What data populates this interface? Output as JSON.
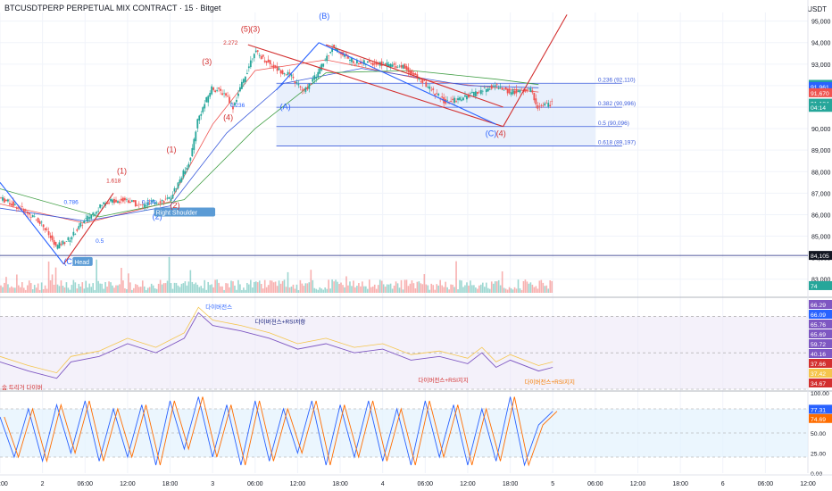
{
  "header": {
    "title": "BTCUSDTPERP PERPETUAL MIX CONTRACT · 15 · Bitget",
    "currency": "USDT"
  },
  "colors": {
    "up": "#26a69a",
    "down": "#ef5350",
    "grid": "#f0f3fa",
    "axis": "#131722",
    "fib_fill": "#e3ecfb",
    "fib_line": "#3b5bdb",
    "wave_red": "#d32f2f",
    "wave_blue": "#2962ff",
    "rsi_line": "#7e57c2",
    "rsi_ma": "#f5c54c",
    "stoch_k": "#2962ff",
    "stoch_d": "#ff6d00"
  },
  "chart_data": {
    "type": "candlestick",
    "price_axis": {
      "ticks": [
        "95,000",
        "94,000",
        "93,000",
        "92,000",
        "91,000",
        "90,000",
        "89,000",
        "88,000",
        "87,000",
        "86,000",
        "85,000",
        "84,000",
        "83,000"
      ],
      "range": [
        82200,
        95400
      ]
    },
    "price_tags": [
      {
        "label": "92,058",
        "value": 92058,
        "color": "#26a69a"
      },
      {
        "label": "91,961",
        "value": 91961,
        "color": "#2962ff"
      },
      {
        "label": "91,670",
        "value": 91670,
        "color": "#ef5350"
      },
      {
        "label": "91,184",
        "value": 91184,
        "color": "#26a69a"
      },
      {
        "label": "04:14",
        "value": 90990,
        "color": "#26a69a"
      },
      {
        "label": "84,105",
        "value": 84105,
        "color": "#131722"
      },
      {
        "label": "74",
        "value": 82700,
        "color": "#26a69a"
      }
    ],
    "time_axis": {
      "ticks": [
        "18:00",
        "2",
        "06:00",
        "12:00",
        "18:00",
        "3",
        "06:00",
        "12:00",
        "18:00",
        "4",
        "06:00",
        "12:00",
        "18:00",
        "5",
        "06:00",
        "12:00",
        "18:00",
        "6",
        "06:00",
        "12:00"
      ],
      "range_hours": [
        -6,
        108
      ]
    },
    "horizontal_line": {
      "value": 84105
    },
    "fib_box": {
      "x_hours": [
        33,
        78
      ],
      "price_range": [
        89197,
        92110
      ]
    },
    "fib_levels": [
      {
        "label": "0.236 (92,110)",
        "value": 92110
      },
      {
        "label": "0.382 (90,996)",
        "value": 90996
      },
      {
        "label": "0.5 (90,096)",
        "value": 90096
      },
      {
        "label": "0.618 (89,197)",
        "value": 89197
      }
    ],
    "price_path": [
      {
        "t": -6,
        "p": 86800
      },
      {
        "t": -3,
        "p": 86300
      },
      {
        "t": 0,
        "p": 85600
      },
      {
        "t": 2,
        "p": 84500
      },
      {
        "t": 4,
        "p": 84900
      },
      {
        "t": 6,
        "p": 85700
      },
      {
        "t": 9,
        "p": 86600
      },
      {
        "t": 12,
        "p": 86700
      },
      {
        "t": 14,
        "p": 86400
      },
      {
        "t": 16,
        "p": 86600
      },
      {
        "t": 18,
        "p": 86700
      },
      {
        "t": 19,
        "p": 87300
      },
      {
        "t": 21,
        "p": 88600
      },
      {
        "t": 22,
        "p": 90400
      },
      {
        "t": 24,
        "p": 91900
      },
      {
        "t": 26,
        "p": 91600
      },
      {
        "t": 27,
        "p": 91000
      },
      {
        "t": 29,
        "p": 92700
      },
      {
        "t": 30,
        "p": 93600
      },
      {
        "t": 33,
        "p": 92800
      },
      {
        "t": 35,
        "p": 92500
      },
      {
        "t": 37,
        "p": 91700
      },
      {
        "t": 39,
        "p": 92600
      },
      {
        "t": 41,
        "p": 93800
      },
      {
        "t": 44,
        "p": 93100
      },
      {
        "t": 48,
        "p": 93000
      },
      {
        "t": 51,
        "p": 92900
      },
      {
        "t": 54,
        "p": 92100
      },
      {
        "t": 57,
        "p": 91200
      },
      {
        "t": 60,
        "p": 91500
      },
      {
        "t": 64,
        "p": 92000
      },
      {
        "t": 66,
        "p": 91700
      },
      {
        "t": 69,
        "p": 91800
      },
      {
        "t": 70,
        "p": 91000
      },
      {
        "t": 72,
        "p": 91184
      }
    ],
    "wave_labels": [
      {
        "text": "(C)",
        "t": 3,
        "p": 83700,
        "color": "#2962ff"
      },
      {
        "text": "Head",
        "t": 4.5,
        "p": 83700,
        "color": "#ffffff",
        "bg": "#5b9bd5"
      },
      {
        "text": "(1)",
        "t": 10.5,
        "p": 87900,
        "color": "#d32f2f"
      },
      {
        "text": "(2)",
        "t": 15.5,
        "p": 85800,
        "color": "#2962ff"
      },
      {
        "text": "Right Shoulder",
        "t": 16,
        "p": 86000,
        "color": "#ffffff",
        "bg": "#5b9bd5"
      },
      {
        "text": "(1)",
        "t": 17.5,
        "p": 88900,
        "color": "#d32f2f"
      },
      {
        "text": "(2)",
        "t": 18,
        "p": 86300,
        "color": "#d32f2f"
      },
      {
        "text": "(3)",
        "t": 22.5,
        "p": 93000,
        "color": "#d32f2f"
      },
      {
        "text": "(4)",
        "t": 25.5,
        "p": 90400,
        "color": "#d32f2f"
      },
      {
        "text": "(5)",
        "t": 28,
        "p": 94500,
        "color": "#d32f2f"
      },
      {
        "text": "(3)",
        "t": 29.3,
        "p": 94500,
        "color": "#d32f2f"
      },
      {
        "text": "(A)",
        "t": 33.5,
        "p": 90900,
        "color": "#2962ff"
      },
      {
        "text": "(B)",
        "t": 39,
        "p": 95100,
        "color": "#2962ff"
      },
      {
        "text": "(C)",
        "t": 62.5,
        "p": 89650,
        "color": "#2962ff"
      },
      {
        "text": "(4)",
        "t": 64,
        "p": 89650,
        "color": "#d32f2f"
      }
    ],
    "fib_annotations": [
      {
        "text": "1.618",
        "t": 9,
        "p": 87500,
        "color": "#d32f2f"
      },
      {
        "text": "0.786",
        "t": 3,
        "p": 86500,
        "color": "#2962ff"
      },
      {
        "text": "0.236",
        "t": 14,
        "p": 86500,
        "color": "#2962ff"
      },
      {
        "text": "0.5",
        "t": 7.5,
        "p": 84700,
        "color": "#2962ff"
      },
      {
        "text": "2.272",
        "t": 25.5,
        "p": 93900,
        "color": "#d32f2f"
      },
      {
        "text": "0.236",
        "t": 26.5,
        "p": 91000,
        "color": "#2962ff"
      },
      {
        "text": "0.382 (90,996)",
        "t": 66.5,
        "p": 90996,
        "color": "#2962ff"
      }
    ],
    "trend_lines": [
      {
        "from": [
          29,
          93900
        ],
        "to": [
          65,
          90100
        ],
        "color": "#d32f2f"
      },
      {
        "from": [
          40,
          93900
        ],
        "to": [
          65,
          91000
        ],
        "color": "#d32f2f"
      },
      {
        "from": [
          65,
          90100
        ],
        "to": [
          74,
          95300
        ],
        "color": "#d32f2f"
      },
      {
        "from": [
          33,
          91800
        ],
        "to": [
          39,
          94000
        ],
        "color": "#2962ff"
      },
      {
        "from": [
          39,
          94000
        ],
        "to": [
          64,
          90200
        ],
        "color": "#2962ff"
      },
      {
        "from": [
          -6,
          87500
        ],
        "to": [
          3,
          83700
        ],
        "color": "#2962ff"
      },
      {
        "from": [
          3,
          83700
        ],
        "to": [
          10,
          87000
        ],
        "color": "#d32f2f"
      }
    ],
    "moving_averages": [
      {
        "name": "MA1",
        "color": "#ef5350",
        "points": [
          [
            -6,
            86500
          ],
          [
            6,
            85600
          ],
          [
            18,
            86600
          ],
          [
            24,
            90200
          ],
          [
            30,
            92700
          ],
          [
            40,
            93200
          ],
          [
            55,
            92200
          ],
          [
            70,
            91700
          ]
        ]
      },
      {
        "name": "MA2",
        "color": "#3b5bdb",
        "points": [
          [
            -6,
            86300
          ],
          [
            6,
            85700
          ],
          [
            18,
            86400
          ],
          [
            26,
            89800
          ],
          [
            34,
            92100
          ],
          [
            45,
            92800
          ],
          [
            60,
            92000
          ],
          [
            70,
            91900
          ]
        ]
      },
      {
        "name": "MA3",
        "color": "#43a047",
        "points": [
          [
            -6,
            87200
          ],
          [
            8,
            85900
          ],
          [
            20,
            86700
          ],
          [
            30,
            90000
          ],
          [
            40,
            92600
          ],
          [
            52,
            92700
          ],
          [
            64,
            92300
          ],
          [
            70,
            92050
          ]
        ]
      }
    ],
    "rsi": {
      "axis_ticks": [
        "66.29",
        "66.09",
        "65.76",
        "65.69",
        "59.72",
        "40.16",
        "37.66",
        "37.42",
        "34.67"
      ],
      "points": [
        [
          -6,
          45
        ],
        [
          -2,
          40
        ],
        [
          2,
          36
        ],
        [
          4,
          45
        ],
        [
          8,
          48
        ],
        [
          12,
          55
        ],
        [
          16,
          50
        ],
        [
          20,
          58
        ],
        [
          22,
          72
        ],
        [
          24,
          65
        ],
        [
          28,
          62
        ],
        [
          32,
          58
        ],
        [
          36,
          52
        ],
        [
          40,
          55
        ],
        [
          44,
          50
        ],
        [
          48,
          52
        ],
        [
          52,
          46
        ],
        [
          56,
          48
        ],
        [
          60,
          44
        ],
        [
          62,
          50
        ],
        [
          64,
          42
        ],
        [
          66,
          46
        ],
        [
          70,
          40
        ],
        [
          72,
          42
        ]
      ],
      "annotations": [
        {
          "text": "다이버전스",
          "t": 23,
          "v": 74,
          "color": "#2962ff"
        },
        {
          "text": "다이버전스+RSI저항",
          "t": 30,
          "v": 66,
          "color": "#1a237e"
        },
        {
          "text": "다이버전스+RSI지지",
          "t": 53,
          "v": 34,
          "color": "#d32f2f"
        },
        {
          "text": "다이버전스+RSI지지",
          "t": 68,
          "v": 33,
          "color": "#f57c00"
        },
        {
          "text": "숨 트리거 다이버",
          "t": -6,
          "v": 30,
          "color": "#d32f2f"
        }
      ]
    },
    "stochastic": {
      "axis_ticks": [
        "100.00",
        "77.31",
        "74.69",
        "50.00",
        "25.00",
        "0.00"
      ],
      "points": [
        [
          -6,
          70
        ],
        [
          -4,
          20
        ],
        [
          -2,
          80
        ],
        [
          0,
          15
        ],
        [
          2,
          85
        ],
        [
          4,
          25
        ],
        [
          6,
          90
        ],
        [
          8,
          15
        ],
        [
          10,
          80
        ],
        [
          12,
          20
        ],
        [
          14,
          85
        ],
        [
          16,
          10
        ],
        [
          18,
          90
        ],
        [
          20,
          30
        ],
        [
          22,
          95
        ],
        [
          24,
          20
        ],
        [
          26,
          85
        ],
        [
          28,
          10
        ],
        [
          30,
          90
        ],
        [
          32,
          15
        ],
        [
          34,
          80
        ],
        [
          36,
          25
        ],
        [
          38,
          90
        ],
        [
          40,
          10
        ],
        [
          42,
          85
        ],
        [
          44,
          20
        ],
        [
          46,
          90
        ],
        [
          48,
          15
        ],
        [
          50,
          80
        ],
        [
          52,
          10
        ],
        [
          54,
          90
        ],
        [
          56,
          20
        ],
        [
          58,
          85
        ],
        [
          60,
          10
        ],
        [
          62,
          80
        ],
        [
          64,
          15
        ],
        [
          66,
          95
        ],
        [
          68,
          10
        ],
        [
          70,
          60
        ],
        [
          72,
          77
        ]
      ]
    }
  }
}
